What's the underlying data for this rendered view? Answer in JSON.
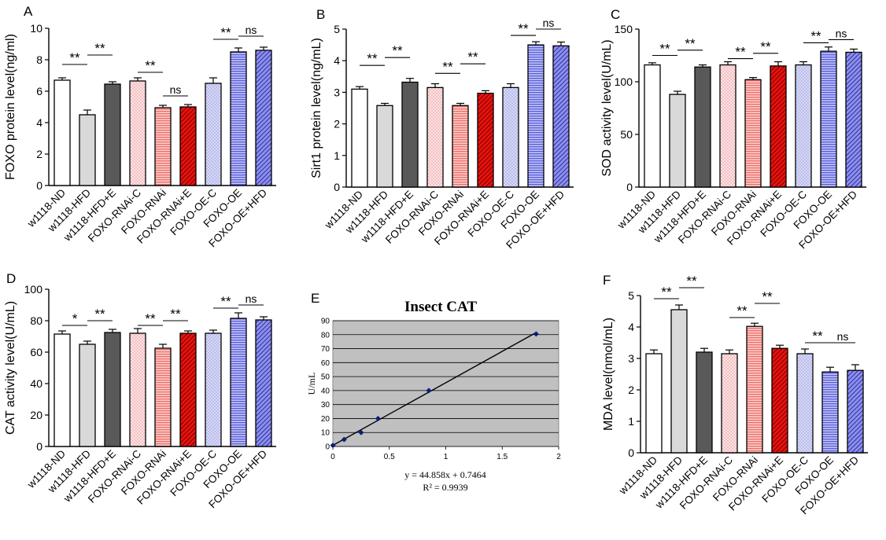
{
  "colors": {
    "white": "#ffffff",
    "light_gray": "#d9d9d9",
    "dark_gray": "#595959",
    "pink_dots": "#fde2e4",
    "salmon_lines": "#f48a86",
    "red_diag": "#e8130d",
    "lavender_dots": "#c7c9f3",
    "blue_lines": "#7a7ce5",
    "blue_diag": "#6f73e0",
    "plot_bg": "#c0c0c0",
    "point": "#0a1f7a"
  },
  "shared_categories": [
    "w1118-ND",
    "w1118-HFD",
    "w1118-HFD+E",
    "FOXO-RNAi-C",
    "FOXO-RNAi",
    "FOXO-RNAi+E",
    "FOXO-OE-C",
    "FOXO-OE",
    "FOXO-OE+HFD"
  ],
  "chart_data": [
    {
      "panel": "A",
      "type": "bar",
      "ylabel": "FOXO protein level(ng/ml)",
      "ylim": [
        0,
        10
      ],
      "yticks": [
        "0",
        "2",
        "4",
        "6",
        "8",
        "10"
      ],
      "values": [
        6.7,
        4.5,
        6.45,
        6.65,
        4.95,
        5.0,
        6.5,
        8.5,
        8.6
      ],
      "errors": [
        0.15,
        0.3,
        0.15,
        0.2,
        0.15,
        0.15,
        0.35,
        0.25,
        0.2
      ],
      "annotations": [
        {
          "from": 0,
          "to": 1,
          "label": "**",
          "level": 7.7
        },
        {
          "from": 1,
          "to": 2,
          "label": "**",
          "level": 8.3
        },
        {
          "from": 3,
          "to": 4,
          "label": "**",
          "level": 7.2
        },
        {
          "from": 4,
          "to": 5,
          "label": "ns",
          "level": 5.7
        },
        {
          "from": 6,
          "to": 7,
          "label": "**",
          "level": 9.3
        },
        {
          "from": 7,
          "to": 8,
          "label": "ns",
          "level": 9.5
        }
      ]
    },
    {
      "panel": "B",
      "type": "bar",
      "ylabel": "Sirt1 protein level(ng/mL)",
      "ylim": [
        0,
        5
      ],
      "yticks": [
        "0",
        "1",
        "2",
        "3",
        "4",
        "5"
      ],
      "values": [
        3.1,
        2.58,
        3.32,
        3.15,
        2.58,
        2.97,
        3.15,
        4.5,
        4.47
      ],
      "errors": [
        0.08,
        0.07,
        0.12,
        0.12,
        0.07,
        0.08,
        0.12,
        0.1,
        0.12
      ],
      "annotations": [
        {
          "from": 0,
          "to": 1,
          "label": "**",
          "level": 3.85
        },
        {
          "from": 1,
          "to": 2,
          "label": "**",
          "level": 4.1
        },
        {
          "from": 3,
          "to": 4,
          "label": "**",
          "level": 3.6
        },
        {
          "from": 4,
          "to": 5,
          "label": "**",
          "level": 3.9
        },
        {
          "from": 6,
          "to": 7,
          "label": "**",
          "level": 4.8
        },
        {
          "from": 7,
          "to": 8,
          "label": "ns",
          "level": 5.0
        }
      ]
    },
    {
      "panel": "C",
      "type": "bar",
      "ylabel": "SOD activity level(U/mL)",
      "ylim": [
        0,
        150
      ],
      "yticks": [
        "0",
        "50",
        "100",
        "150"
      ],
      "values": [
        116,
        88,
        114,
        116,
        102,
        115,
        116,
        129,
        128
      ],
      "errors": [
        2,
        3,
        2,
        3,
        2,
        4,
        3,
        4,
        3
      ],
      "annotations": [
        {
          "from": 0,
          "to": 1,
          "label": "**",
          "level": 125
        },
        {
          "from": 1,
          "to": 2,
          "label": "**",
          "level": 130
        },
        {
          "from": 3,
          "to": 4,
          "label": "**",
          "level": 122
        },
        {
          "from": 4,
          "to": 5,
          "label": "**",
          "level": 127
        },
        {
          "from": 6,
          "to": 7,
          "label": "**",
          "level": 137
        },
        {
          "from": 7,
          "to": 8,
          "label": "ns",
          "level": 140
        }
      ]
    },
    {
      "panel": "D",
      "type": "bar",
      "ylabel": "CAT activity level(U/mL)",
      "ylim": [
        0,
        100
      ],
      "yticks": [
        "0",
        "20",
        "40",
        "60",
        "80",
        "100"
      ],
      "values": [
        71.5,
        65,
        72.5,
        72,
        62.5,
        72,
        72,
        81.5,
        80.5
      ],
      "errors": [
        2,
        2,
        2,
        3,
        2.5,
        1.5,
        2,
        3.5,
        2
      ],
      "annotations": [
        {
          "from": 0,
          "to": 1,
          "label": "*",
          "level": 77
        },
        {
          "from": 1,
          "to": 2,
          "label": "**",
          "level": 80
        },
        {
          "from": 3,
          "to": 4,
          "label": "**",
          "level": 77
        },
        {
          "from": 4,
          "to": 5,
          "label": "**",
          "level": 80
        },
        {
          "from": 6,
          "to": 7,
          "label": "**",
          "level": 88
        },
        {
          "from": 7,
          "to": 8,
          "label": "ns",
          "level": 90
        }
      ]
    },
    {
      "panel": "E",
      "type": "scatter",
      "title": "Insect CAT",
      "ylabel": "U/mL",
      "xlim": [
        0,
        2
      ],
      "ylim": [
        0,
        90
      ],
      "xticks": [
        "0",
        "0.5",
        "1",
        "1.5",
        "2"
      ],
      "yticks": [
        "0",
        "10",
        "20",
        "30",
        "40",
        "50",
        "60",
        "70",
        "80",
        "90"
      ],
      "points": [
        {
          "x": 0.0,
          "y": 0.75
        },
        {
          "x": 0.1,
          "y": 5
        },
        {
          "x": 0.25,
          "y": 10
        },
        {
          "x": 0.4,
          "y": 20
        },
        {
          "x": 0.85,
          "y": 40
        },
        {
          "x": 1.8,
          "y": 80.5
        }
      ],
      "trendline": {
        "slope": 44.858,
        "intercept": 0.7464
      },
      "equation": "y = 44.858x + 0.7464",
      "r2": "R² = 0.9939"
    },
    {
      "panel": "F",
      "type": "bar",
      "ylabel": "MDA level(nmol/mL)",
      "ylim": [
        0,
        5
      ],
      "yticks": [
        "0",
        "1",
        "2",
        "3",
        "4",
        "5"
      ],
      "values": [
        3.15,
        4.55,
        3.2,
        3.15,
        4.02,
        3.32,
        3.15,
        2.57,
        2.62
      ],
      "errors": [
        0.12,
        0.15,
        0.12,
        0.12,
        0.1,
        0.1,
        0.15,
        0.15,
        0.18
      ],
      "annotations": [
        {
          "from": 0,
          "to": 1,
          "label": "**",
          "level": 4.9
        },
        {
          "from": 1,
          "to": 2,
          "label": "**",
          "level": 5.25
        },
        {
          "from": 3,
          "to": 4,
          "label": "**",
          "level": 4.3
        },
        {
          "from": 4,
          "to": 5,
          "label": "**",
          "level": 4.75
        },
        {
          "from": 6,
          "to": 7,
          "label": "**",
          "level": 3.5
        },
        {
          "from": 7,
          "to": 8,
          "label": "ns",
          "level": 3.5
        }
      ]
    }
  ]
}
